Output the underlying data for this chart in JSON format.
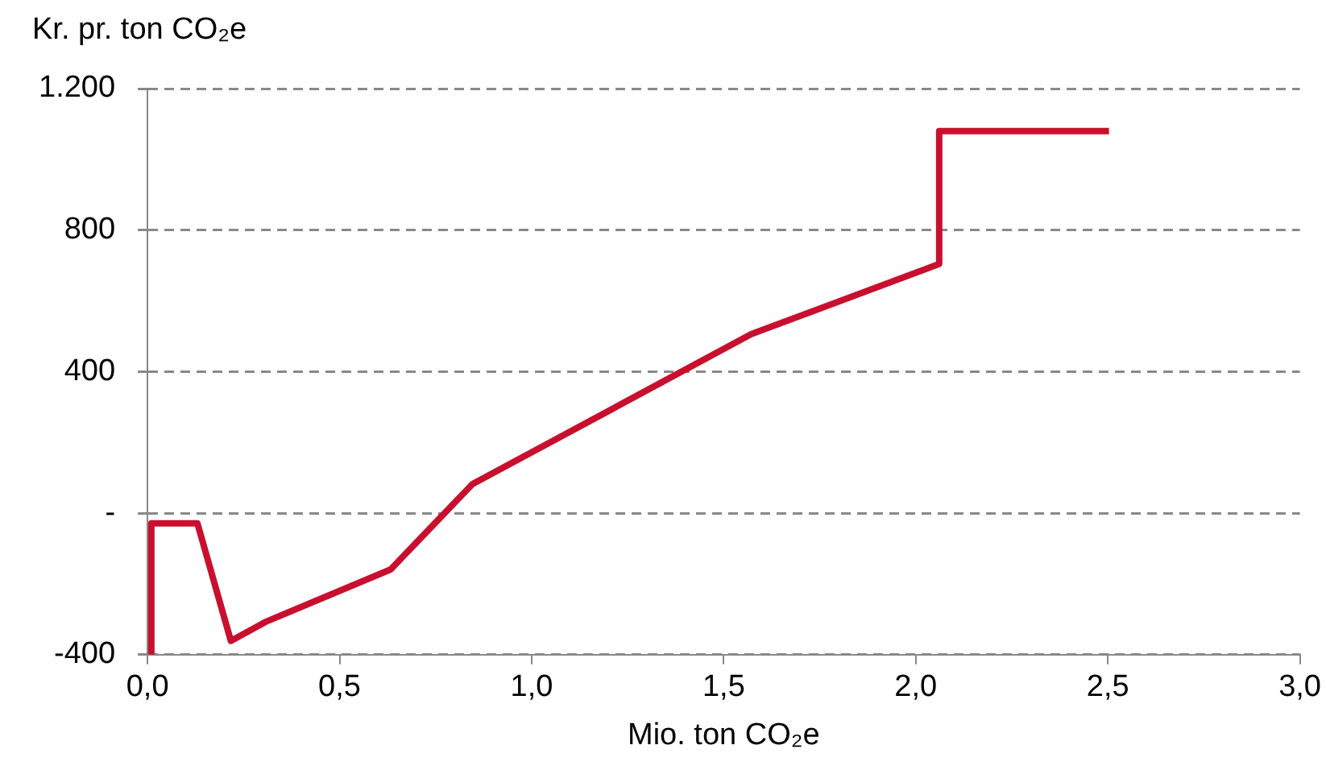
{
  "chart_data": {
    "type": "line",
    "ylabel": "Kr. pr. ton CO₂e",
    "xlabel": "Mio. ton CO₂e",
    "x": [
      0.01,
      0.01,
      0.13,
      0.217,
      0.306,
      0.633,
      0.846,
      1.572,
      2.061,
      2.061,
      2.503
    ],
    "series": [
      {
        "color": "#c8102e",
        "values": [
          -400,
          -29,
          -29,
          -361,
          -308,
          -159,
          82,
          506,
          704,
          1080,
          1080
        ]
      }
    ],
    "xlim": [
      0,
      3
    ],
    "xticks": [
      {
        "value": 0,
        "label": "0,0"
      },
      {
        "value": 0.5,
        "label": "0,5"
      },
      {
        "value": 1,
        "label": "1,0"
      },
      {
        "value": 1.5,
        "label": "1,5"
      },
      {
        "value": 2,
        "label": "2,0"
      },
      {
        "value": 2.5,
        "label": "2,5"
      },
      {
        "value": 3,
        "label": "3,0"
      }
    ],
    "ylim": [
      -400,
      1200
    ],
    "yticks": [
      {
        "value": -400,
        "label": "-400"
      },
      {
        "value": 0,
        "label": "-"
      },
      {
        "value": 400,
        "label": "400"
      },
      {
        "value": 800,
        "label": "800"
      },
      {
        "value": 1200,
        "label": "1.200"
      }
    ],
    "grid": "y",
    "legend": false,
    "marker": "none",
    "line_style": "solid"
  }
}
